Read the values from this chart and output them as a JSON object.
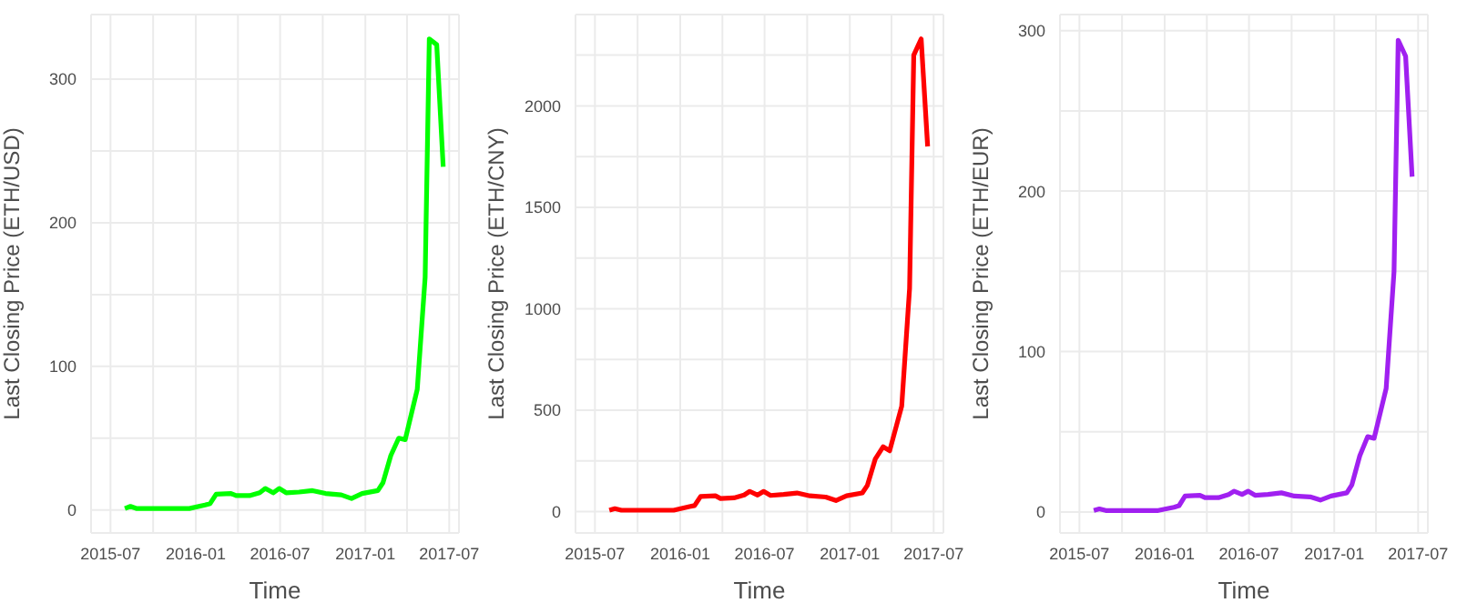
{
  "chart_data": [
    {
      "type": "line",
      "xlabel": "Time",
      "ylabel": "Last Closing Price (ETH/USD)",
      "color": "#00ff00",
      "grid": true,
      "line_style": "solid",
      "x": [
        "2015-08-01",
        "2015-08-13",
        "2015-08-27",
        "2015-12-18",
        "2016-01-21",
        "2016-02-01",
        "2016-02-14",
        "2016-03-17",
        "2016-03-28",
        "2016-04-26",
        "2016-05-18",
        "2016-05-30",
        "2016-06-16",
        "2016-06-29",
        "2016-07-14",
        "2016-08-11",
        "2016-09-09",
        "2016-10-07",
        "2016-11-10",
        "2016-12-02",
        "2016-12-25",
        "2017-01-28",
        "2017-02-08",
        "2017-02-25",
        "2017-03-14",
        "2017-03-28",
        "2017-04-23",
        "2017-05-10",
        "2017-05-19",
        "2017-06-04",
        "2017-06-18"
      ],
      "values": [
        1,
        2.5,
        1,
        1,
        3.5,
        4.5,
        11,
        11.5,
        10,
        10,
        12,
        15,
        12,
        15,
        12,
        12.5,
        13.5,
        11.5,
        10.5,
        8,
        11.5,
        13.5,
        19,
        38,
        50,
        49,
        84,
        162,
        328,
        324,
        239
      ],
      "xlim": [
        "2015-05-20",
        "2017-07-22"
      ],
      "xticks": [
        "2015-07",
        {
          "value": "2015-10",
          "label": null
        },
        "2016-01",
        {
          "value": "2016-04",
          "label": null
        },
        "2016-07",
        {
          "value": "2016-10",
          "label": null
        },
        "2017-01",
        {
          "value": "2017-04",
          "label": null
        },
        "2017-07"
      ],
      "ylim": [
        -16,
        345
      ],
      "yticks": [
        0,
        {
          "value": 50,
          "label": null
        },
        100,
        {
          "value": 150,
          "label": null
        },
        200,
        {
          "value": 250,
          "label": null
        },
        300
      ]
    },
    {
      "type": "line",
      "xlabel": "Time",
      "ylabel": "Last Closing Price (ETH/CNY)",
      "color": "#ff0000",
      "grid": true,
      "line_style": "solid",
      "x": [
        "2015-08-01",
        "2015-08-13",
        "2015-08-27",
        "2015-12-18",
        "2016-01-21",
        "2016-02-01",
        "2016-02-14",
        "2016-03-17",
        "2016-03-28",
        "2016-04-26",
        "2016-05-18",
        "2016-05-30",
        "2016-06-16",
        "2016-06-29",
        "2016-07-14",
        "2016-08-11",
        "2016-09-09",
        "2016-10-07",
        "2016-11-10",
        "2016-12-02",
        "2016-12-25",
        "2017-01-28",
        "2017-02-08",
        "2017-02-25",
        "2017-03-14",
        "2017-03-28",
        "2017-04-23",
        "2017-05-10",
        "2017-05-19",
        "2017-06-04",
        "2017-06-18"
      ],
      "values": [
        7,
        15,
        7,
        7,
        25,
        30,
        75,
        78,
        65,
        68,
        82,
        100,
        82,
        100,
        80,
        85,
        92,
        78,
        72,
        55,
        78,
        92,
        130,
        260,
        320,
        300,
        520,
        1100,
        2250,
        2330,
        1800
      ],
      "xlim": [
        "2015-05-20",
        "2017-07-22"
      ],
      "xticks": [
        "2015-07",
        {
          "value": "2015-10",
          "label": null
        },
        "2016-01",
        {
          "value": "2016-04",
          "label": null
        },
        "2016-07",
        {
          "value": "2016-10",
          "label": null
        },
        "2017-01",
        {
          "value": "2017-04",
          "label": null
        },
        "2017-07"
      ],
      "ylim": [
        -105,
        2450
      ],
      "yticks": [
        0,
        {
          "value": 250,
          "label": null
        },
        500,
        {
          "value": 750,
          "label": null
        },
        1000,
        {
          "value": 1250,
          "label": null
        },
        1500,
        {
          "value": 1750,
          "label": null
        },
        2000,
        {
          "value": 2250,
          "label": null
        }
      ]
    },
    {
      "type": "line",
      "xlabel": "Time",
      "ylabel": "Last Closing Price (ETH/EUR)",
      "color": "#a020f0",
      "grid": true,
      "line_style": "solid",
      "x": [
        "2015-08-01",
        "2015-08-13",
        "2015-08-27",
        "2015-12-18",
        "2016-01-21",
        "2016-02-01",
        "2016-02-14",
        "2016-03-17",
        "2016-03-28",
        "2016-04-26",
        "2016-05-18",
        "2016-05-30",
        "2016-06-16",
        "2016-06-29",
        "2016-07-14",
        "2016-08-11",
        "2016-09-09",
        "2016-10-07",
        "2016-11-10",
        "2016-12-02",
        "2016-12-25",
        "2017-01-28",
        "2017-02-08",
        "2017-02-25",
        "2017-03-14",
        "2017-03-28",
        "2017-04-23",
        "2017-05-10",
        "2017-05-19",
        "2017-06-04",
        "2017-06-18"
      ],
      "values": [
        1,
        2,
        1,
        1,
        3,
        4,
        10,
        10.5,
        9,
        9,
        11,
        13,
        11,
        13,
        10.5,
        11,
        12,
        10,
        9.5,
        7.5,
        10,
        12,
        17,
        35,
        47,
        46,
        77,
        150,
        294,
        284,
        209
      ],
      "xlim": [
        "2015-05-20",
        "2017-07-22"
      ],
      "xticks": [
        "2015-07",
        {
          "value": "2015-10",
          "label": null
        },
        "2016-01",
        {
          "value": "2016-04",
          "label": null
        },
        "2016-07",
        {
          "value": "2016-10",
          "label": null
        },
        "2017-01",
        {
          "value": "2017-04",
          "label": null
        },
        "2017-07"
      ],
      "ylim": [
        -13,
        310
      ],
      "yticks": [
        0,
        {
          "value": 50,
          "label": null
        },
        100,
        {
          "value": 150,
          "label": null
        },
        200,
        {
          "value": 250,
          "label": null
        },
        300
      ]
    }
  ]
}
